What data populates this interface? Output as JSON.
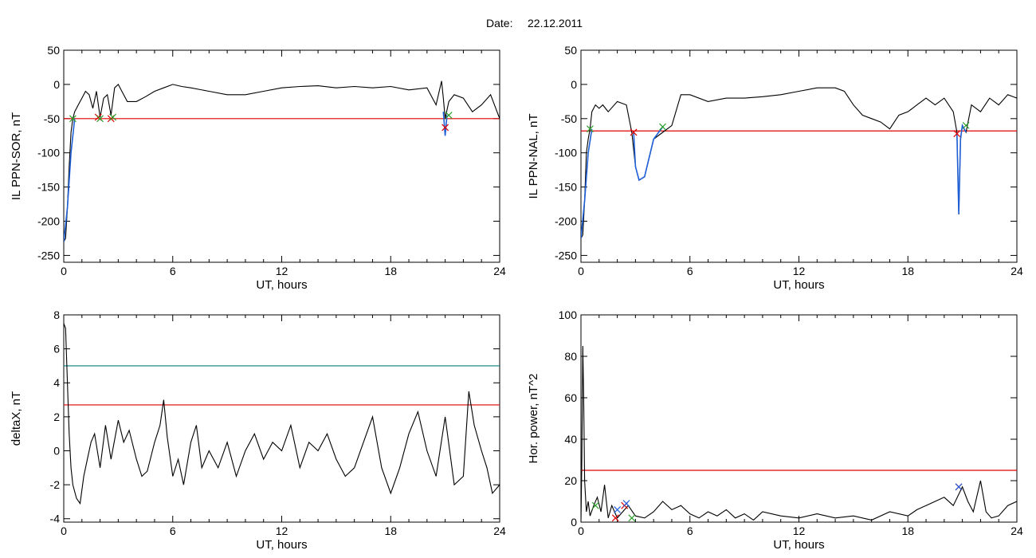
{
  "header": {
    "date_label": "Date:",
    "date_value": "22.12.2011"
  },
  "colors": {
    "trace": "#000000",
    "threshold_red": "#e00000",
    "threshold_teal": "#008080",
    "highlight_blue": "#1f5fd6",
    "marker_green": "#2aa02a",
    "marker_red": "#d02020",
    "marker_blue": "#2060e0"
  },
  "chart_data": [
    {
      "type": "line",
      "ylabel": "IL PPN-SOR, nT",
      "xlabel": "UT, hours",
      "xlim": [
        0,
        24
      ],
      "xticks": [
        0,
        6,
        12,
        18,
        24
      ],
      "ylim": [
        -260,
        50
      ],
      "yticks": [
        50,
        0,
        -50,
        -100,
        -150,
        -200,
        -250
      ],
      "thresholds": [
        {
          "value": -50,
          "color": "red"
        }
      ],
      "series": [
        {
          "x": [
            0,
            0.1,
            0.2,
            0.3,
            0.4,
            0.5,
            0.6,
            0.8,
            1.0,
            1.2,
            1.4,
            1.6,
            1.8,
            2.0,
            2.2,
            2.4,
            2.6,
            2.8,
            3.0,
            3.2,
            3.5,
            4.0,
            4.5,
            5.0,
            5.5,
            6.0,
            6.5,
            7.0,
            8.0,
            9.0,
            10.0,
            11.0,
            12.0,
            13.0,
            14.0,
            15.0,
            16.0,
            17.0,
            18.0,
            19.0,
            20.0,
            20.5,
            20.8,
            20.9,
            21.0,
            21.2,
            21.5,
            22.0,
            22.5,
            23.0,
            23.5,
            24.0
          ],
          "y": [
            -230,
            -225,
            -180,
            -120,
            -70,
            -50,
            -40,
            -30,
            -20,
            -10,
            -15,
            -35,
            -10,
            -48,
            -20,
            -15,
            -45,
            -5,
            0,
            -10,
            -25,
            -25,
            -18,
            -10,
            -5,
            0,
            -3,
            -5,
            -10,
            -15,
            -15,
            -10,
            -5,
            -3,
            -2,
            -5,
            -3,
            -5,
            -3,
            -8,
            -5,
            -30,
            5,
            -20,
            -50,
            -25,
            -15,
            -20,
            -40,
            -30,
            -15,
            -50
          ]
        }
      ],
      "highlights": [
        {
          "x": [
            0,
            0.2,
            0.4,
            0.6
          ],
          "y": [
            -230,
            -180,
            -100,
            -50
          ]
        },
        {
          "x": [
            20.9,
            21.0,
            21.1
          ],
          "y": [
            -40,
            -75,
            -45
          ]
        }
      ],
      "markers": [
        {
          "x": 0.5,
          "y": -50,
          "color": "green"
        },
        {
          "x": 1.9,
          "y": -48,
          "color": "red"
        },
        {
          "x": 2.0,
          "y": -50,
          "color": "green"
        },
        {
          "x": 2.6,
          "y": -50,
          "color": "red"
        },
        {
          "x": 2.7,
          "y": -48,
          "color": "green"
        },
        {
          "x": 21.0,
          "y": -63,
          "color": "red"
        },
        {
          "x": 21.2,
          "y": -45,
          "color": "green"
        }
      ]
    },
    {
      "type": "line",
      "ylabel": "IL PPN-NAL, nT",
      "xlabel": "UT, hours",
      "xlim": [
        0,
        24
      ],
      "xticks": [
        0,
        6,
        12,
        18,
        24
      ],
      "ylim": [
        -260,
        50
      ],
      "yticks": [
        50,
        0,
        -50,
        -100,
        -150,
        -200,
        -250
      ],
      "thresholds": [
        {
          "value": -68,
          "color": "red"
        }
      ],
      "series": [
        {
          "x": [
            0,
            0.1,
            0.2,
            0.3,
            0.4,
            0.5,
            0.6,
            0.8,
            1.0,
            1.2,
            1.5,
            2.0,
            2.5,
            2.8,
            3.0,
            3.2,
            3.5,
            4.0,
            4.5,
            5.0,
            5.5,
            6.0,
            7.0,
            8.0,
            9.0,
            10.0,
            11.0,
            12.0,
            13.0,
            14.0,
            14.5,
            15.0,
            15.5,
            16.0,
            16.5,
            17.0,
            17.5,
            18.0,
            18.5,
            19.0,
            19.5,
            20.0,
            20.5,
            20.7,
            20.8,
            20.9,
            21.0,
            21.2,
            21.5,
            22.0,
            22.5,
            23.0,
            23.5,
            24.0
          ],
          "y": [
            -225,
            -220,
            -170,
            -100,
            -80,
            -65,
            -40,
            -30,
            -35,
            -30,
            -40,
            -25,
            -30,
            -70,
            -120,
            -140,
            -135,
            -80,
            -70,
            -60,
            -15,
            -15,
            -25,
            -20,
            -20,
            -18,
            -15,
            -10,
            -5,
            -5,
            -10,
            -30,
            -45,
            -50,
            -55,
            -65,
            -45,
            -40,
            -30,
            -20,
            -30,
            -20,
            -40,
            -70,
            -190,
            -80,
            -60,
            -70,
            -30,
            -40,
            -20,
            -30,
            -15,
            -20
          ]
        }
      ],
      "highlights": [
        {
          "x": [
            0,
            0.2,
            0.4,
            0.6
          ],
          "y": [
            -225,
            -170,
            -100,
            -65
          ]
        },
        {
          "x": [
            2.9,
            3.0,
            3.2,
            3.5,
            4.0,
            4.5
          ],
          "y": [
            -70,
            -120,
            -140,
            -135,
            -80,
            -62
          ]
        },
        {
          "x": [
            20.7,
            20.8,
            20.9,
            21.0,
            21.2
          ],
          "y": [
            -72,
            -190,
            -80,
            -60,
            -70
          ]
        }
      ],
      "markers": [
        {
          "x": 0.5,
          "y": -65,
          "color": "green"
        },
        {
          "x": 2.9,
          "y": -70,
          "color": "red"
        },
        {
          "x": 4.5,
          "y": -62,
          "color": "green"
        },
        {
          "x": 20.7,
          "y": -72,
          "color": "red"
        },
        {
          "x": 21.2,
          "y": -60,
          "color": "green"
        }
      ]
    },
    {
      "type": "line",
      "ylabel": "deltaX, nT",
      "xlabel": "UT, hours",
      "xlim": [
        0,
        24
      ],
      "xticks": [
        0,
        6,
        12,
        18,
        24
      ],
      "ylim": [
        -4.2,
        8
      ],
      "yticks": [
        8,
        6,
        4,
        2,
        0,
        -2,
        -4
      ],
      "thresholds": [
        {
          "value": 5,
          "color": "teal"
        },
        {
          "value": 2.7,
          "color": "red"
        }
      ],
      "series": [
        {
          "x": [
            0,
            0.1,
            0.2,
            0.3,
            0.4,
            0.5,
            0.7,
            0.9,
            1.1,
            1.3,
            1.5,
            1.7,
            2.0,
            2.3,
            2.6,
            3.0,
            3.3,
            3.6,
            4.0,
            4.3,
            4.6,
            5.0,
            5.3,
            5.5,
            5.7,
            6.0,
            6.3,
            6.6,
            7.0,
            7.3,
            7.6,
            8.0,
            8.5,
            9.0,
            9.5,
            10.0,
            10.5,
            11.0,
            11.5,
            12.0,
            12.5,
            13.0,
            13.5,
            14.0,
            14.5,
            15.0,
            15.5,
            16.0,
            16.5,
            17.0,
            17.5,
            18.0,
            18.5,
            19.0,
            19.5,
            20.0,
            20.5,
            21.0,
            21.5,
            22.0,
            22.3,
            22.6,
            23.0,
            23.3,
            23.6,
            24.0
          ],
          "y": [
            7.5,
            7.2,
            4.0,
            1.0,
            -1.0,
            -2.0,
            -2.8,
            -3.1,
            -1.5,
            -0.5,
            0.5,
            1.0,
            -1.0,
            1.5,
            -0.5,
            1.8,
            0.5,
            1.2,
            -0.5,
            -1.5,
            -1.2,
            0.5,
            1.5,
            3.0,
            0.8,
            -1.5,
            -0.5,
            -2.0,
            0.5,
            1.5,
            -1.0,
            0.0,
            -1.0,
            0.5,
            -1.5,
            0.0,
            1.0,
            -0.5,
            0.5,
            0.0,
            1.5,
            -1.0,
            0.5,
            0.0,
            1.0,
            -0.5,
            -1.5,
            -1.0,
            0.5,
            2.0,
            -1.0,
            -2.5,
            -1.0,
            1.0,
            2.3,
            0.0,
            -1.5,
            2.0,
            -2.0,
            -1.5,
            3.5,
            1.5,
            0.0,
            -1.0,
            -2.5,
            -2.0
          ]
        }
      ]
    },
    {
      "type": "line",
      "ylabel": "Hor. power, nT^2",
      "xlabel": "UT, hours",
      "xlim": [
        0,
        24
      ],
      "xticks": [
        0,
        6,
        12,
        18,
        24
      ],
      "ylim": [
        0,
        100
      ],
      "yticks": [
        100,
        80,
        60,
        40,
        20,
        0
      ],
      "thresholds": [
        {
          "value": 25,
          "color": "red"
        }
      ],
      "series": [
        {
          "x": [
            0,
            0.05,
            0.1,
            0.15,
            0.2,
            0.3,
            0.4,
            0.5,
            0.7,
            0.9,
            1.1,
            1.3,
            1.5,
            1.7,
            2.0,
            2.3,
            2.6,
            3.0,
            3.5,
            4.0,
            4.5,
            5.0,
            5.5,
            6.0,
            6.5,
            7.0,
            7.5,
            8.0,
            8.5,
            9.0,
            9.5,
            10.0,
            11.0,
            12.0,
            13.0,
            14.0,
            15.0,
            16.0,
            17.0,
            18.0,
            18.5,
            19.0,
            19.5,
            20.0,
            20.5,
            21.0,
            21.3,
            21.6,
            22.0,
            22.3,
            22.6,
            23.0,
            23.5,
            24.0
          ],
          "y": [
            0,
            30,
            85,
            60,
            20,
            5,
            10,
            3,
            8,
            12,
            5,
            18,
            2,
            8,
            2,
            5,
            8,
            3,
            2,
            5,
            10,
            6,
            8,
            4,
            2,
            5,
            3,
            6,
            2,
            4,
            1,
            5,
            3,
            2,
            4,
            2,
            3,
            1,
            5,
            3,
            6,
            8,
            10,
            12,
            8,
            17,
            10,
            5,
            20,
            5,
            2,
            3,
            8,
            10
          ]
        }
      ],
      "markers": [
        {
          "x": 0.8,
          "y": 8,
          "color": "green"
        },
        {
          "x": 1.9,
          "y": 2,
          "color": "red"
        },
        {
          "x": 2.0,
          "y": 6,
          "color": "blue"
        },
        {
          "x": 2.4,
          "y": 8,
          "color": "red"
        },
        {
          "x": 2.5,
          "y": 9,
          "color": "blue"
        },
        {
          "x": 2.8,
          "y": 2,
          "color": "green"
        },
        {
          "x": 20.8,
          "y": 17,
          "color": "red"
        },
        {
          "x": 20.8,
          "y": 17,
          "color": "blue"
        }
      ]
    }
  ]
}
